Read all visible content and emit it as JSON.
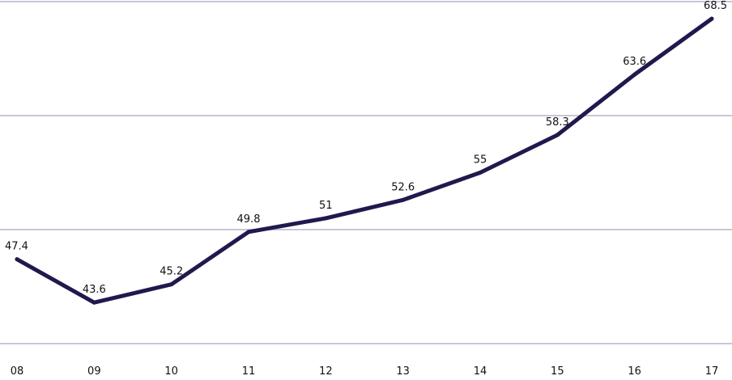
{
  "chart_data": {
    "type": "line",
    "title": "",
    "xlabel": "",
    "ylabel": "",
    "categories": [
      "08",
      "09",
      "10",
      "11",
      "12",
      "13",
      "14",
      "15",
      "16",
      "17"
    ],
    "series": [
      {
        "values": [
          47.4,
          43.6,
          45.2,
          49.8,
          51,
          52.6,
          55,
          58.3,
          63.6,
          68.5
        ]
      }
    ],
    "data_labels": [
      "47.4",
      "43.6",
      "45.2",
      "49.8",
      "51",
      "52.6",
      "55",
      "58.3",
      "63.6",
      "68.5"
    ],
    "ylim": [
      40,
      70
    ],
    "y_gridlines": [
      40,
      50,
      60,
      70
    ],
    "y_tick_labels_shown": false,
    "grid": true,
    "legend": "none",
    "colors": {
      "line": "#1f1a4d",
      "grid": "#c9c6d8",
      "text": "#111111"
    }
  }
}
